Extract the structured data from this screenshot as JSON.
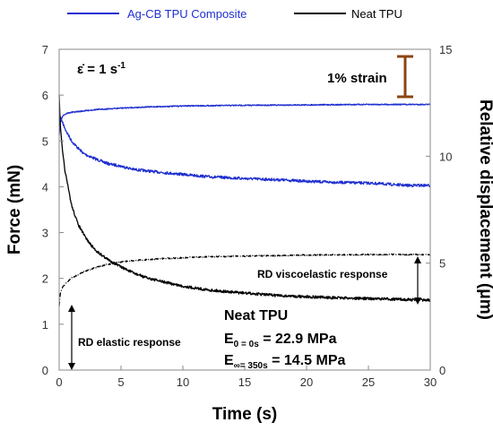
{
  "chart_data": {
    "type": "line",
    "xlabel": "Time (s)",
    "ylabel": "Force (mN)",
    "y2label": "Relative displacement (μm)",
    "xlim": [
      0,
      30
    ],
    "ylim": [
      0,
      7
    ],
    "y2lim": [
      0,
      15
    ],
    "x_ticks": [
      0,
      5,
      10,
      15,
      20,
      25,
      30
    ],
    "y_ticks": [
      0,
      1,
      2,
      3,
      4,
      5,
      6,
      7
    ],
    "y2_ticks": [
      0,
      5,
      10,
      15
    ],
    "grid": false,
    "legend_position": "top",
    "series": [
      {
        "name": "Ag-CB TPU Composite",
        "color": "#1f2fd0",
        "axis": "left",
        "kind": "force",
        "x": [
          0,
          0.2,
          0.5,
          1,
          1.5,
          2,
          3,
          4,
          5,
          6,
          8,
          10,
          12,
          15,
          18,
          20,
          22,
          25,
          27,
          28,
          29,
          30
        ],
        "y": [
          5.6,
          5.45,
          5.25,
          5.0,
          4.85,
          4.72,
          4.6,
          4.5,
          4.45,
          4.38,
          4.32,
          4.27,
          4.22,
          4.18,
          4.15,
          4.12,
          4.1,
          4.08,
          4.05,
          4.03,
          4.03,
          4.03
        ]
      },
      {
        "name": "Ag-CB TPU Composite",
        "color": "#1f2fd0",
        "axis": "right",
        "kind": "displacement",
        "x": [
          0,
          0.1,
          0.3,
          0.6,
          1,
          2,
          3,
          5,
          7,
          10,
          15,
          20,
          25,
          30
        ],
        "y": [
          11.0,
          11.6,
          11.9,
          12.0,
          12.05,
          12.12,
          12.18,
          12.25,
          12.3,
          12.35,
          12.38,
          12.4,
          12.42,
          12.42
        ]
      },
      {
        "name": "Neat TPU",
        "color": "#000000",
        "axis": "left",
        "kind": "force",
        "x": [
          0,
          0.1,
          0.3,
          0.5,
          1,
          1.5,
          2,
          2.5,
          3,
          4,
          5,
          6,
          7,
          8,
          10,
          12,
          14,
          16,
          18,
          20,
          22,
          25,
          28,
          30
        ],
        "y": [
          6.0,
          5.3,
          4.7,
          4.3,
          3.6,
          3.2,
          2.95,
          2.75,
          2.6,
          2.4,
          2.25,
          2.12,
          2.02,
          1.95,
          1.83,
          1.75,
          1.7,
          1.66,
          1.62,
          1.6,
          1.58,
          1.56,
          1.54,
          1.52
        ]
      },
      {
        "name": "Neat TPU",
        "color": "#000000",
        "axis": "right",
        "kind": "displacement",
        "x": [
          0,
          0.1,
          0.3,
          0.6,
          1,
          1.5,
          2,
          3,
          4,
          5,
          6,
          8,
          10,
          12,
          15,
          18,
          20,
          25,
          30
        ],
        "y": [
          3.0,
          3.6,
          3.9,
          4.1,
          4.3,
          4.45,
          4.6,
          4.8,
          4.95,
          5.05,
          5.12,
          5.2,
          5.25,
          5.3,
          5.33,
          5.36,
          5.38,
          5.4,
          5.4
        ]
      }
    ],
    "annotations": {
      "strain_rate_main": "ε̇ = 1 s",
      "strain_rate_sup": "-1",
      "strain_bar_label": "1% strain",
      "viscoelastic_label": "RD viscoelastic response",
      "elastic_label": "RD elastic response",
      "material": "Neat TPU",
      "e0_main": "E",
      "e0_sub": "0 = 0s",
      "e0_value": " = 22.9 MPa",
      "einf_main": "E",
      "einf_sub": "∞= 350s",
      "einf_value": " = 14.5 MPa"
    },
    "colors": {
      "annotation_accent": "#8b1a1a",
      "strain_bar": "#8b4513"
    }
  }
}
